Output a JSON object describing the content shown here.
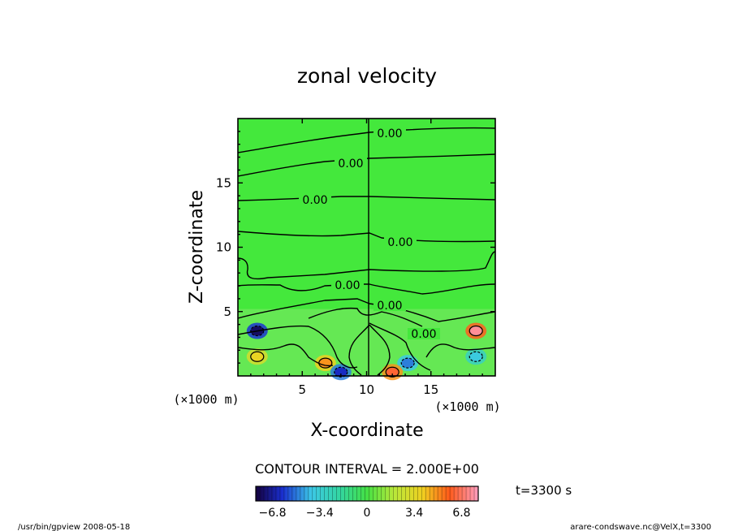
{
  "chart_data": {
    "type": "heatmap",
    "title": "zonal velocity",
    "xlabel": "X-coordinate",
    "ylabel": "Z-coordinate",
    "xunit": "(×1000 m)",
    "yunit": "(×1000 m)",
    "xlim": [
      0,
      20
    ],
    "ylim": [
      0,
      20
    ],
    "xticks": [
      5,
      10,
      15
    ],
    "yticks": [
      5,
      10,
      15
    ],
    "contour_interval": "CONTOUR INTERVAL = 2.000E+00",
    "contour_labels": [
      "0.00",
      "0.00",
      "0.00",
      "0.00",
      "0.00",
      "0.00",
      "0.00"
    ],
    "time_label": "t=3300 s",
    "colorbar": {
      "ticks": [
        "−6.8",
        "−3.4",
        "0",
        "3.4",
        "6.8"
      ],
      "range": [
        -8,
        8
      ]
    },
    "features": [
      {
        "x": 1.5,
        "z": 3.5,
        "value": -6.0
      },
      {
        "x": 18.5,
        "z": 3.5,
        "value": 6.0
      },
      {
        "x": 1.5,
        "z": 1.5,
        "value": 3.0
      },
      {
        "x": 18.5,
        "z": 1.5,
        "value": -3.0
      },
      {
        "x": 6.8,
        "z": 1.0,
        "value": 4.0
      },
      {
        "x": 13.2,
        "z": 1.0,
        "value": -4.0
      },
      {
        "x": 8.0,
        "z": 0.3,
        "value": -5.0
      },
      {
        "x": 12.0,
        "z": 0.3,
        "value": 5.0
      }
    ]
  },
  "footer": {
    "left": "/usr/bin/gpview   2008-05-18",
    "right": "arare-condswave.nc@VelX,t=3300"
  }
}
